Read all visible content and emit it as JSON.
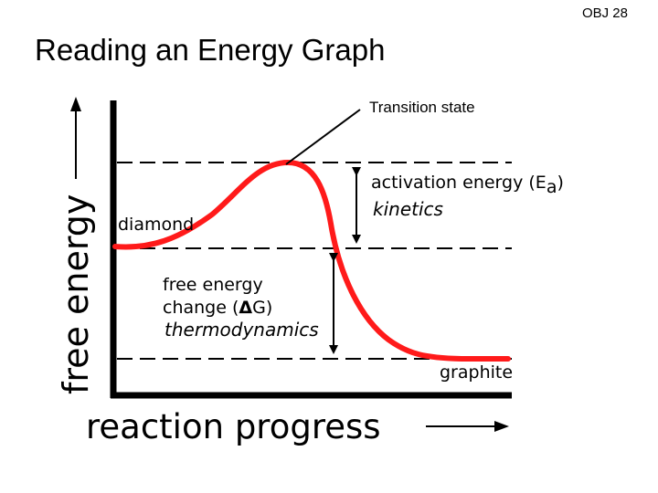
{
  "header": {
    "objective": "OBJ 28",
    "title": "Reading an Energy Graph"
  },
  "diagram": {
    "y_axis_label": "free energy",
    "x_axis_label": "reaction progress",
    "transition_label": "Transition state",
    "reactant_label": "diamond",
    "product_label": "graphite",
    "activation": {
      "label_prefix": "activation energy (E",
      "label_subscript": "a",
      "label_suffix": ")",
      "category": "kinetics"
    },
    "delta_g": {
      "line1": "free energy",
      "line2_prefix": "change (",
      "delta_symbol": "Δ",
      "line2_suffix": "G)",
      "category": "thermodynamics"
    },
    "colors": {
      "curve": "#ff1a1a",
      "ink": "#000000"
    }
  }
}
